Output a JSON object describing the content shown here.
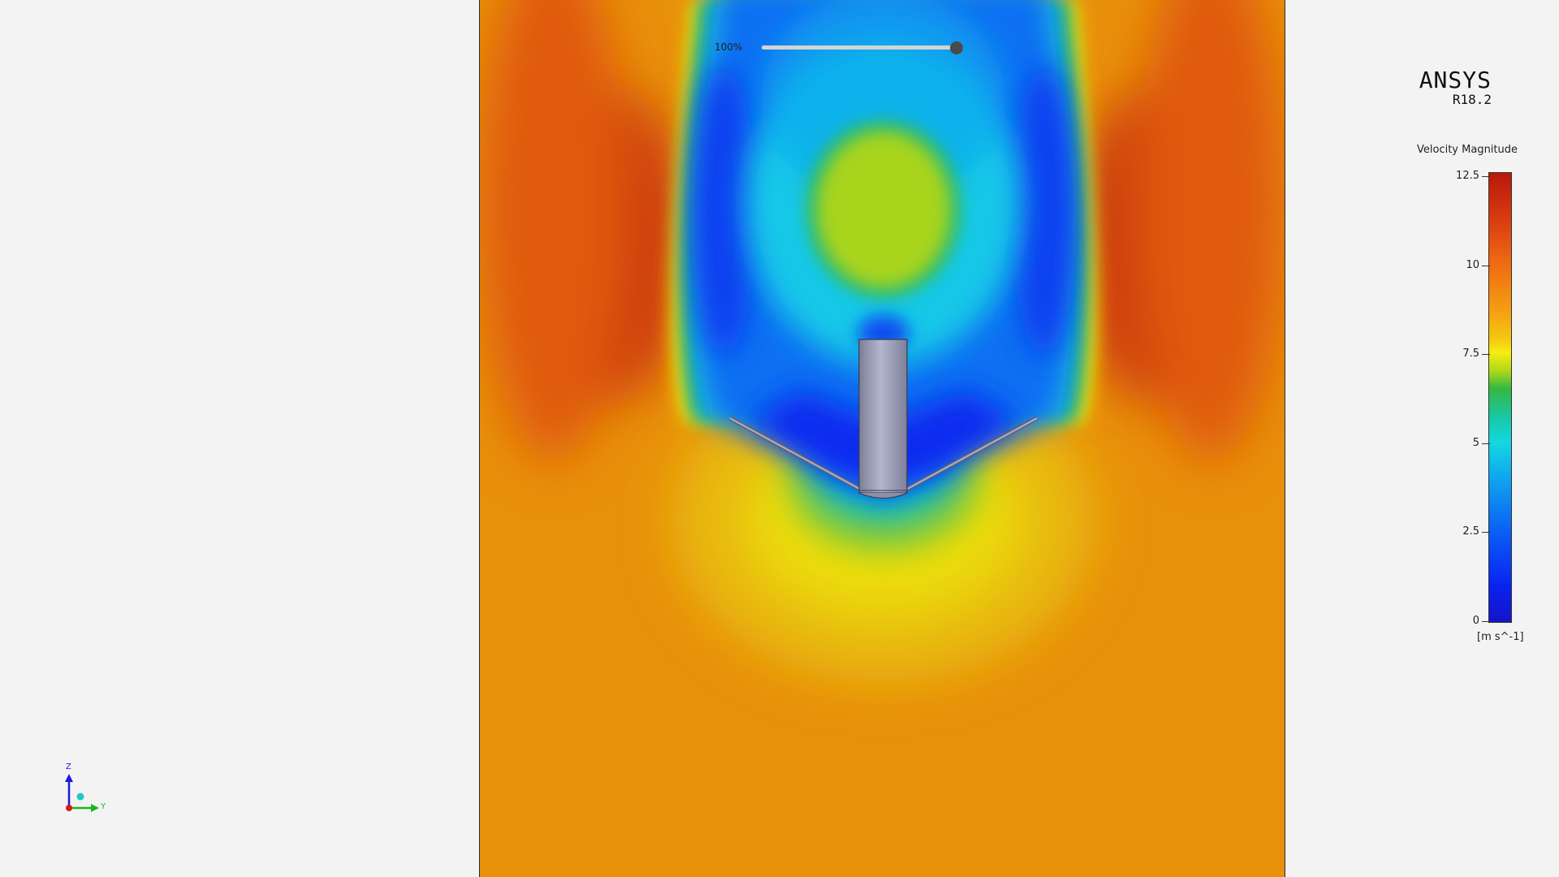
{
  "brand": {
    "name": "ANSYS",
    "version": "R18.2"
  },
  "animation": {
    "label": "100%",
    "progress": 1.0
  },
  "legend": {
    "title": "Velocity Magnitude",
    "unit": "[m s^-1]",
    "ticks": [
      "12.5",
      "10",
      "7.5",
      "5",
      "2.5",
      "0"
    ],
    "min": 0,
    "max": 12.5
  },
  "triad": {
    "z_label": "Z",
    "y_label": "Y"
  },
  "colors": {
    "background": "#f3f3f3",
    "high_velocity": "#e0480c",
    "low_velocity": "#0a22f0",
    "geometry": "#9b9cba"
  }
}
